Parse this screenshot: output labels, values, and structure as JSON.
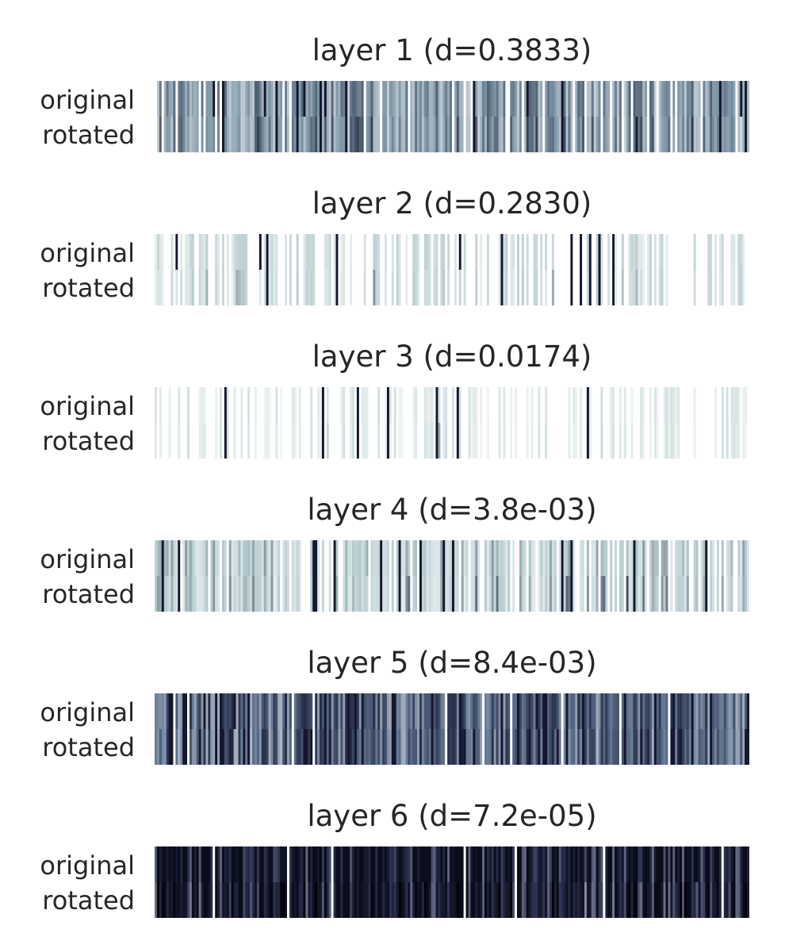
{
  "chart_data": [
    {
      "type": "heatmap",
      "title": "layer 1 (d=0.3833)",
      "rows": [
        "original",
        "rotated"
      ],
      "n_columns": 256,
      "base_color": "#7e96a6",
      "dark_color": "#13162e",
      "value_range": [
        0,
        1
      ],
      "column_density": 0.85,
      "intensity": 0.5,
      "seed": 11
    },
    {
      "type": "heatmap",
      "title": "layer 2 (d=0.2830)",
      "rows": [
        "original",
        "rotated"
      ],
      "n_columns": 256,
      "base_color": "#b9cdd0",
      "dark_color": "#13162e",
      "value_range": [
        0,
        1
      ],
      "column_density": 0.45,
      "intensity": 0.35,
      "seed": 22
    },
    {
      "type": "heatmap",
      "title": "layer 3 (d=0.0174)",
      "rows": [
        "original",
        "rotated"
      ],
      "n_columns": 256,
      "base_color": "#c7d8d8",
      "dark_color": "#13162e",
      "value_range": [
        0,
        1
      ],
      "column_density": 0.4,
      "intensity": 0.3,
      "seed": 33
    },
    {
      "type": "heatmap",
      "title": "layer 4 (d=3.8e-03)",
      "rows": [
        "original",
        "rotated"
      ],
      "n_columns": 256,
      "base_color": "#b3c9cd",
      "dark_color": "#13162e",
      "value_range": [
        0,
        1
      ],
      "column_density": 0.8,
      "intensity": 0.45,
      "seed": 44
    },
    {
      "type": "heatmap",
      "title": "layer 5 (d=8.4e-03)",
      "rows": [
        "original",
        "rotated"
      ],
      "n_columns": 256,
      "base_color": "#5a6d8a",
      "dark_color": "#13162e",
      "value_range": [
        0,
        1
      ],
      "column_density": 0.95,
      "intensity": 0.6,
      "seed": 55
    },
    {
      "type": "heatmap",
      "title": "layer 6 (d=7.2e-05)",
      "rows": [
        "original",
        "rotated"
      ],
      "n_columns": 256,
      "base_color": "#2e3555",
      "dark_color": "#0b0c1a",
      "value_range": [
        0,
        1
      ],
      "column_density": 0.98,
      "intensity": 0.8,
      "seed": 66
    }
  ],
  "colormap": [
    "#ffffff",
    "#c5dfdf",
    "#98b6c0",
    "#6b7ea3",
    "#3a3f6a",
    "#000000"
  ]
}
